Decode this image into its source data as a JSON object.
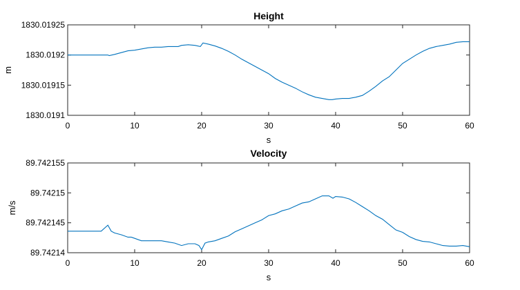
{
  "chart_data": [
    {
      "type": "line",
      "title": "Height",
      "xlabel": "s",
      "ylabel": "m",
      "xlim": [
        0,
        60
      ],
      "ylim": [
        1830.0191,
        1830.01925
      ],
      "xticks": [
        0,
        10,
        20,
        30,
        40,
        50,
        60
      ],
      "xtick_labels": [
        "0",
        "10",
        "20",
        "30",
        "40",
        "50",
        "60"
      ],
      "yticks": [
        1830.0191,
        1830.01915,
        1830.0192,
        1830.01925
      ],
      "ytick_labels": [
        "1830.0191",
        "1830.01915",
        "1830.0192",
        "1830.01925"
      ],
      "grid": false,
      "color": "#0072BD",
      "series": [
        {
          "x": [
            0,
            6,
            6.2,
            7,
            8,
            9,
            10,
            11,
            12,
            13,
            14,
            15,
            16,
            16.5,
            17,
            18,
            19,
            19.8,
            20,
            20.2,
            21,
            22,
            23,
            24,
            25,
            26,
            27,
            28,
            29,
            30,
            31,
            32,
            33,
            34,
            35,
            36,
            37,
            38,
            39,
            39.5,
            40,
            41,
            42,
            43,
            44,
            45,
            46,
            47,
            48,
            49,
            50,
            51,
            52,
            53,
            54,
            55,
            56,
            57,
            58,
            59,
            60
          ],
          "y": [
            1830.0192,
            1830.0192,
            1830.019199,
            1830.019201,
            1830.019204,
            1830.019207,
            1830.019208,
            1830.01921,
            1830.019212,
            1830.019213,
            1830.019213,
            1830.019214,
            1830.019214,
            1830.019214,
            1830.019216,
            1830.019217,
            1830.019216,
            1830.019214,
            1830.019217,
            1830.01922,
            1830.019218,
            1830.019215,
            1830.019211,
            1830.019206,
            1830.0192,
            1830.019193,
            1830.019187,
            1830.019181,
            1830.019175,
            1830.019169,
            1830.019161,
            1830.019155,
            1830.01915,
            1830.019145,
            1830.019139,
            1830.019134,
            1830.01913,
            1830.019128,
            1830.019126,
            1830.019126,
            1830.019127,
            1830.019128,
            1830.019128,
            1830.01913,
            1830.019133,
            1830.01914,
            1830.019148,
            1830.019157,
            1830.019164,
            1830.019175,
            1830.019186,
            1830.019193,
            1830.0192,
            1830.019206,
            1830.019211,
            1830.019214,
            1830.019216,
            1830.019218,
            1830.019221,
            1830.019222,
            1830.019222
          ]
        }
      ]
    },
    {
      "type": "line",
      "title": "Velocity",
      "xlabel": "s",
      "ylabel": "m/s",
      "xlim": [
        0,
        60
      ],
      "ylim": [
        89.74214,
        89.742155
      ],
      "xticks": [
        0,
        10,
        20,
        30,
        40,
        50,
        60
      ],
      "xtick_labels": [
        "0",
        "10",
        "20",
        "30",
        "40",
        "50",
        "60"
      ],
      "yticks": [
        89.74214,
        89.742145,
        89.74215,
        89.742155
      ],
      "ytick_labels": [
        "89.74214",
        "89.742145",
        "89.74215",
        "89.742155"
      ],
      "grid": false,
      "color": "#0072BD",
      "series": [
        {
          "x": [
            0,
            5,
            6,
            6.5,
            7,
            8,
            9,
            9.5,
            10,
            11,
            12,
            13,
            14,
            15,
            16,
            17,
            18,
            19,
            19.6,
            20,
            20.5,
            21,
            22,
            23,
            24,
            25,
            26,
            27,
            28,
            29,
            30,
            31,
            32,
            33,
            34,
            35,
            36,
            37,
            38,
            39,
            39.6,
            40,
            41,
            42,
            43,
            44,
            45,
            46,
            47,
            48,
            49,
            50,
            51,
            52,
            53,
            54,
            55,
            56,
            57,
            58,
            59,
            60
          ],
          "y": [
            89.7421436,
            89.7421436,
            89.7421446,
            89.7421436,
            89.7421433,
            89.742143,
            89.7421426,
            89.7421426,
            89.7421424,
            89.742142,
            89.742142,
            89.742142,
            89.742142,
            89.7421418,
            89.7421416,
            89.7421412,
            89.7421415,
            89.7421415,
            89.7421412,
            89.7421405,
            89.7421416,
            89.7421418,
            89.742142,
            89.7421424,
            89.7421428,
            89.7421435,
            89.742144,
            89.7421445,
            89.742145,
            89.7421455,
            89.7421462,
            89.7421465,
            89.742147,
            89.7421473,
            89.7421478,
            89.7421483,
            89.7421485,
            89.742149,
            89.7421495,
            89.7421495,
            89.7421491,
            89.7421494,
            89.7421493,
            89.742149,
            89.7421484,
            89.7421477,
            89.742147,
            89.7421462,
            89.7421456,
            89.7421447,
            89.7421438,
            89.7421434,
            89.7421427,
            89.7421422,
            89.7421419,
            89.7421418,
            89.7421415,
            89.7421412,
            89.7421411,
            89.7421411,
            89.7421412,
            89.742141
          ]
        }
      ]
    }
  ]
}
